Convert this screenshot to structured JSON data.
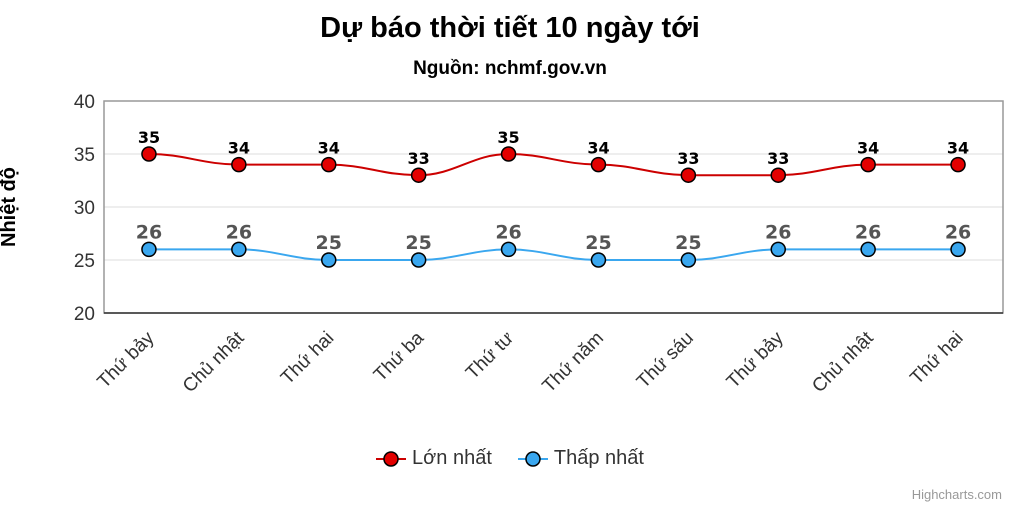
{
  "header": {
    "title": "Dự báo thời tiết 10 ngày tới",
    "subtitle": "Nguồn: nchmf.gov.vn"
  },
  "credits": "Highcharts.com",
  "chart_data": {
    "type": "line",
    "title": "Dự báo thời tiết 10 ngày tới",
    "subtitle": "Nguồn: nchmf.gov.vn",
    "xlabel": "",
    "ylabel": "Nhiệt độ",
    "ylim": [
      20,
      40
    ],
    "yticks": [
      20,
      25,
      30,
      35,
      40
    ],
    "grid": true,
    "legend_position": "bottom",
    "categories": [
      "Thứ bảy",
      "Chủ nhật",
      "Thứ hai",
      "Thứ ba",
      "Thứ tư",
      "Thứ năm",
      "Thứ sáu",
      "Thứ bảy",
      "Chủ nhật",
      "Thứ hai"
    ],
    "series": [
      {
        "name": "Lớn nhất",
        "color": "#e30000",
        "line_color": "#cc0000",
        "label_color": "#000000",
        "values": [
          35,
          34,
          34,
          33,
          35,
          34,
          33,
          33,
          34,
          34
        ]
      },
      {
        "name": "Thấp nhất",
        "color": "#3aa7ef",
        "line_color": "#3aa7ef",
        "label_color": "#555555",
        "values": [
          26,
          26,
          25,
          25,
          26,
          25,
          25,
          26,
          26,
          26
        ]
      }
    ]
  }
}
